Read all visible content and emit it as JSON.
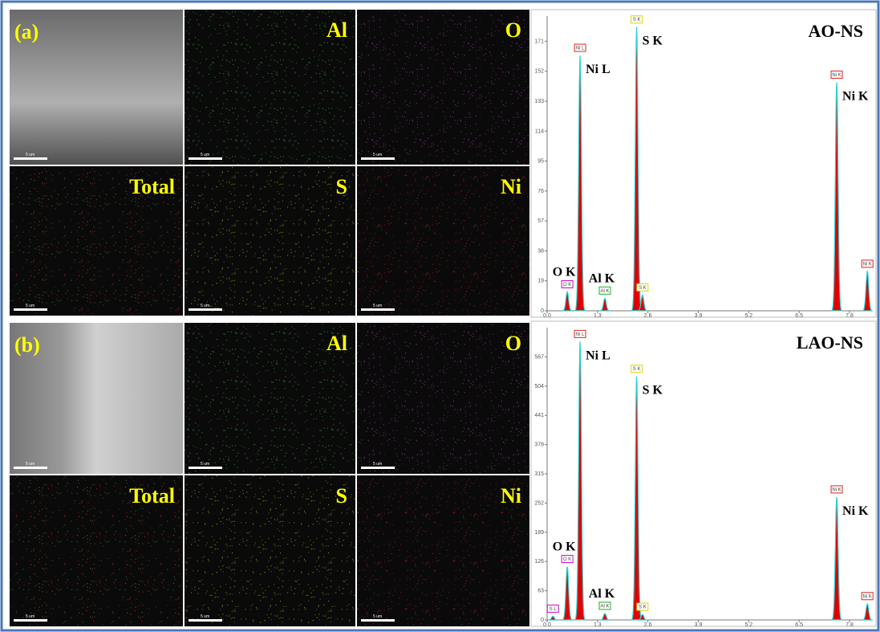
{
  "scale_bar": "5 um",
  "panels": [
    {
      "label": "(a)",
      "tiles": [
        "Al",
        "O",
        "Total",
        "S",
        "Ni"
      ],
      "spectrum": {
        "type": "line",
        "title": "AO-NS",
        "xlim": [
          0,
          8.4
        ],
        "ylim": [
          0,
          187
        ],
        "xticks": [
          {
            "value": 0,
            "label": "0.0"
          },
          1.3,
          2.6,
          3.9,
          5.2,
          6.5,
          7.8
        ],
        "yticks": [
          0,
          19,
          38,
          57,
          76,
          95,
          114,
          133,
          152,
          171
        ],
        "peaks": [
          {
            "x": 0.52,
            "height": 12,
            "tag": "O K",
            "label": "O K",
            "color": "#d000d0"
          },
          {
            "x": 0.85,
            "height": 162,
            "tag": "Ni L",
            "label": "Ni L",
            "color": "#e02020"
          },
          {
            "x": 1.49,
            "height": 8,
            "tag": "Al K",
            "label": "Al K",
            "color": "#20b020"
          },
          {
            "x": 2.31,
            "height": 180,
            "tag": "S K",
            "label": "S K",
            "color": "#d8d800"
          },
          {
            "x": 2.46,
            "height": 10,
            "tag": "S K",
            "color": "#d8d800"
          },
          {
            "x": 7.47,
            "height": 145,
            "tag": "Ni K",
            "label": "Ni K",
            "color": "#e02020"
          },
          {
            "x": 8.26,
            "height": 25,
            "tag": "Ni K",
            "color": "#e02020"
          }
        ]
      }
    },
    {
      "label": "(b)",
      "tiles": [
        "Al",
        "O",
        "Total",
        "S",
        "Ni"
      ],
      "spectrum": {
        "type": "line",
        "title": "LAO-NS",
        "xlim": [
          0,
          8.4
        ],
        "ylim": [
          0,
          630
        ],
        "xticks": [
          {
            "value": 0,
            "label": "0.0"
          },
          1.3,
          2.6,
          3.9,
          5.2,
          6.5,
          7.8
        ],
        "yticks": [
          0,
          63,
          126,
          189,
          252,
          315,
          378,
          441,
          504,
          567
        ],
        "peaks": [
          {
            "x": 0.15,
            "height": 8,
            "tag": "S L",
            "color": "#d000d0"
          },
          {
            "x": 0.52,
            "height": 115,
            "tag": "O K",
            "label": "O K",
            "color": "#d000d0"
          },
          {
            "x": 0.85,
            "height": 600,
            "tag": "Ni L",
            "label": "Ni L",
            "color": "#e02020"
          },
          {
            "x": 1.49,
            "height": 14,
            "tag": "Al K",
            "label": "Al K",
            "color": "#20b020"
          },
          {
            "x": 2.31,
            "height": 525,
            "tag": "S K",
            "label": "S K",
            "color": "#d8d800"
          },
          {
            "x": 2.46,
            "height": 12,
            "tag": "S K",
            "color": "#d8d800"
          },
          {
            "x": 7.47,
            "height": 265,
            "tag": "Ni K",
            "label": "Ni K",
            "color": "#e02020"
          },
          {
            "x": 8.26,
            "height": 35,
            "tag": "Ni K",
            "color": "#e02020"
          }
        ]
      }
    }
  ]
}
